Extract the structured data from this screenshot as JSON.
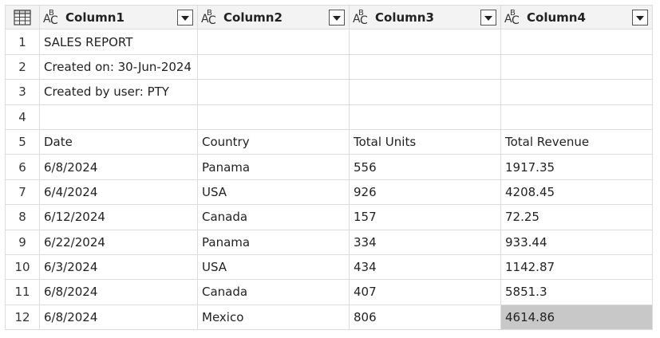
{
  "header": {
    "columns": [
      {
        "type_icon": "text-type-icon",
        "label": "Column1"
      },
      {
        "type_icon": "text-type-icon",
        "label": "Column2"
      },
      {
        "type_icon": "text-type-icon",
        "label": "Column3"
      },
      {
        "type_icon": "text-type-icon",
        "label": "Column4"
      }
    ],
    "type_glyph": {
      "a": "A",
      "b": "B",
      "c": "C"
    }
  },
  "rows": [
    {
      "num": "1",
      "cells": [
        "SALES REPORT",
        "",
        "",
        ""
      ]
    },
    {
      "num": "2",
      "cells": [
        "Created on: 30-Jun-2024",
        "",
        "",
        ""
      ]
    },
    {
      "num": "3",
      "cells": [
        "Created by user: PTY",
        "",
        "",
        ""
      ]
    },
    {
      "num": "4",
      "cells": [
        "",
        "",
        "",
        ""
      ]
    },
    {
      "num": "5",
      "cells": [
        "Date",
        "Country",
        "Total Units",
        "Total Revenue"
      ]
    },
    {
      "num": "6",
      "cells": [
        "6/8/2024",
        "Panama",
        "556",
        "1917.35"
      ]
    },
    {
      "num": "7",
      "cells": [
        "6/4/2024",
        "USA",
        "926",
        "4208.45"
      ]
    },
    {
      "num": "8",
      "cells": [
        "6/12/2024",
        "Canada",
        "157",
        "72.25"
      ]
    },
    {
      "num": "9",
      "cells": [
        "6/22/2024",
        "Panama",
        "334",
        "933.44"
      ]
    },
    {
      "num": "10",
      "cells": [
        "6/3/2024",
        "USA",
        "434",
        "1142.87"
      ]
    },
    {
      "num": "11",
      "cells": [
        "6/8/2024",
        "Canada",
        "407",
        "5851.3"
      ]
    },
    {
      "num": "12",
      "cells": [
        "6/8/2024",
        "Mexico",
        "806",
        "4614.86"
      ]
    }
  ],
  "selected_cell": {
    "row": "12",
    "column": "Column4"
  },
  "colors": {
    "selection": "#c8c8c8",
    "header_bg": "#f3f3f3",
    "gridline": "#dcdcdc"
  }
}
